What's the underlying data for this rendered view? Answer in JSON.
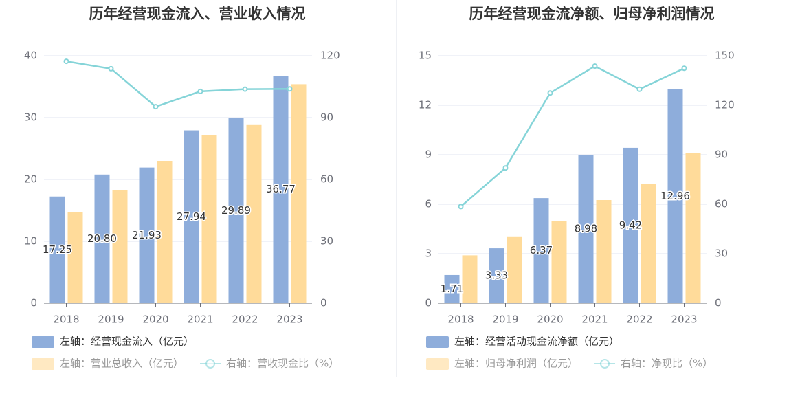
{
  "colors": {
    "bar_primary": "#8eaddb",
    "bar_secondary": "#ffdb9a",
    "line": "#85d4d8",
    "grid": "#e0e6f1",
    "axis": "#6e7079"
  },
  "chart_data": [
    {
      "type": "bar+line",
      "title": "历年经营现金流入、营业收入情况",
      "categories": [
        "2018",
        "2019",
        "2020",
        "2021",
        "2022",
        "2023"
      ],
      "left_axis": {
        "ticks": [
          "0",
          "10",
          "20",
          "30",
          "40"
        ],
        "ylim": [
          0,
          40
        ]
      },
      "right_axis": {
        "ticks": [
          "0",
          "30",
          "60",
          "90",
          "120"
        ],
        "ylim": [
          0,
          120
        ]
      },
      "series": [
        {
          "name": "左轴：经营现金流入（亿元）",
          "type": "bar",
          "axis": "left",
          "values": [
            17.25,
            20.8,
            21.93,
            27.94,
            29.89,
            36.77
          ],
          "labels": [
            "17.25",
            "20.80",
            "21.93",
            "27.94",
            "29.89",
            "36.77"
          ]
        },
        {
          "name": "左轴：营业总收入（亿元）",
          "type": "bar",
          "axis": "left",
          "values": [
            14.7,
            18.3,
            23.0,
            27.2,
            28.8,
            35.4
          ]
        },
        {
          "name": "右轴：营收现金比（%）",
          "type": "line",
          "axis": "right",
          "values": [
            117.3,
            113.7,
            95.3,
            102.7,
            103.8,
            103.9
          ]
        }
      ],
      "legend_position": "bottom-left"
    },
    {
      "type": "bar+line",
      "title": "历年经营现金流净额、归母净利润情况",
      "categories": [
        "2018",
        "2019",
        "2020",
        "2021",
        "2022",
        "2023"
      ],
      "left_axis": {
        "ticks": [
          "0",
          "3",
          "6",
          "9",
          "12",
          "15"
        ],
        "ylim": [
          0,
          15
        ]
      },
      "right_axis": {
        "ticks": [
          "0",
          "30",
          "60",
          "90",
          "120",
          "150"
        ],
        "ylim": [
          0,
          150
        ]
      },
      "series": [
        {
          "name": "左轴：经营活动现金流净额（亿元）",
          "type": "bar",
          "axis": "left",
          "values": [
            1.71,
            3.33,
            6.37,
            8.98,
            9.42,
            12.96
          ],
          "labels": [
            "1.71",
            "3.33",
            "6.37",
            "8.98",
            "9.42",
            "12.96"
          ]
        },
        {
          "name": "左轴：归母净利润（亿元）",
          "type": "bar",
          "axis": "left",
          "values": [
            2.9,
            4.05,
            5.0,
            6.25,
            7.25,
            9.1
          ]
        },
        {
          "name": "右轴：净现比（%）",
          "type": "line",
          "axis": "right",
          "values": [
            58.6,
            82.0,
            127.4,
            143.7,
            129.7,
            142.4
          ]
        }
      ],
      "legend_position": "bottom-left"
    }
  ]
}
